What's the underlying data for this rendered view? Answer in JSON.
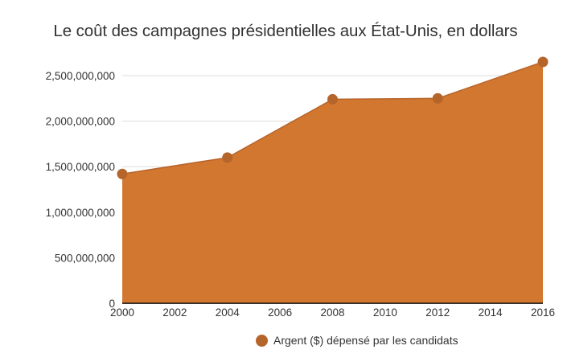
{
  "chart_data": {
    "type": "area",
    "title": "Le coût des campagnes présidentielles aux État-Unis, en dollars",
    "xlabel": "",
    "ylabel": "",
    "x": [
      2000,
      2004,
      2008,
      2012,
      2016
    ],
    "series": [
      {
        "name": "Argent ($) dépensé par les candidats",
        "values": [
          1420000000,
          1600000000,
          2240000000,
          2250000000,
          2650000000
        ]
      }
    ],
    "xlim": [
      2000,
      2016
    ],
    "ylim": [
      0,
      2650000000
    ],
    "x_ticks": [
      "2000",
      "2002",
      "2004",
      "2006",
      "2008",
      "2010",
      "2012",
      "2014",
      "2016"
    ],
    "x_tick_values": [
      2000,
      2002,
      2004,
      2006,
      2008,
      2010,
      2012,
      2014,
      2016
    ],
    "y_ticks": [
      "0",
      "500,000,000",
      "1,000,000,000",
      "1,500,000,000",
      "2,000,000,000",
      "2,500,000,000"
    ],
    "y_tick_values": [
      0,
      500000000,
      1000000000,
      1500000000,
      2000000000,
      2500000000
    ],
    "grid": true,
    "legend_position": "bottom-center",
    "colors": {
      "fill": "#d27730",
      "marker": "#b5642a",
      "axis": "#3d3127",
      "grid": "#dddddd"
    }
  }
}
